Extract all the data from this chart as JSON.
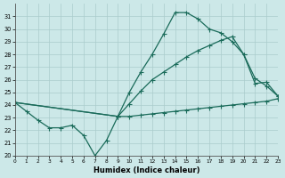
{
  "xlabel": "Humidex (Indice chaleur)",
  "bg_color": "#cce8e8",
  "line_color": "#1a6b5a",
  "grid_color": "#aacccc",
  "xlim": [
    0,
    23
  ],
  "ylim": [
    20,
    32
  ],
  "yticks": [
    20,
    21,
    22,
    23,
    24,
    25,
    26,
    27,
    28,
    29,
    30,
    31
  ],
  "xticks": [
    0,
    1,
    2,
    3,
    4,
    5,
    6,
    7,
    8,
    9,
    10,
    11,
    12,
    13,
    14,
    15,
    16,
    17,
    18,
    19,
    20,
    21,
    22,
    23
  ],
  "curve1_x": [
    0,
    1,
    2,
    3,
    4,
    5,
    6,
    7,
    8,
    9,
    10,
    11,
    12,
    13,
    14,
    15,
    16,
    17,
    18,
    19,
    20,
    21,
    22,
    23
  ],
  "curve1_y": [
    24.2,
    23.5,
    22.8,
    22.2,
    22.2,
    22.4,
    21.6,
    20.0,
    21.2,
    23.1,
    23.1,
    23.2,
    23.3,
    23.4,
    23.5,
    23.6,
    23.7,
    23.8,
    23.9,
    24.0,
    24.1,
    24.2,
    24.3,
    24.5
  ],
  "curve2_x": [
    0,
    9,
    10,
    11,
    12,
    13,
    14,
    15,
    16,
    17,
    18,
    19,
    20,
    21,
    22,
    23
  ],
  "curve2_y": [
    24.2,
    23.1,
    24.1,
    25.1,
    26.0,
    26.6,
    27.2,
    27.8,
    28.3,
    28.7,
    29.1,
    29.4,
    28.0,
    26.1,
    25.5,
    24.7
  ],
  "curve3_x": [
    0,
    9,
    10,
    11,
    12,
    13,
    14,
    15,
    16,
    17,
    18,
    19,
    20,
    21,
    22,
    23
  ],
  "curve3_y": [
    24.2,
    23.1,
    25.0,
    26.6,
    28.0,
    29.6,
    31.3,
    31.3,
    30.8,
    30.0,
    29.7,
    29.0,
    28.0,
    25.7,
    25.8,
    24.7
  ]
}
